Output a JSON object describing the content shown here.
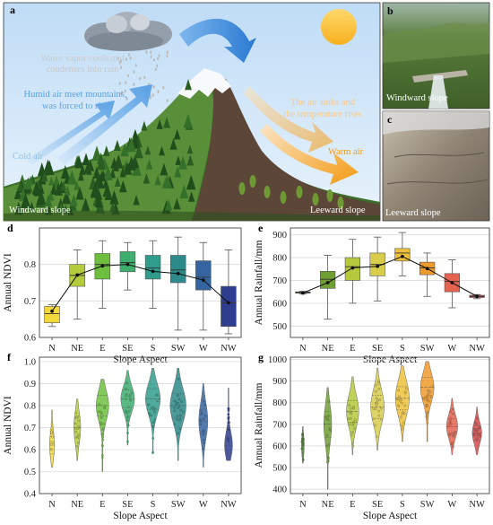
{
  "panels": {
    "a": {
      "letter": "a",
      "labels": {
        "vapor": [
          "Water vapor cools and",
          "condenses into rain"
        ],
        "humid": [
          "Humid air meet mountains,",
          "was forced to rise"
        ],
        "cold": "Cold air",
        "sinks": [
          "The air sinks and",
          "the temperature rises"
        ],
        "warm": "Warm air",
        "windward": "Windward slope",
        "leeward": "Leeward slope"
      },
      "colors": {
        "sky": "#cfe4f7",
        "humid_text": "#5aa3e8",
        "cold_text": "#8fc1ea",
        "vapor_text": "#c9c9c9",
        "sinks_text": "#f8c98a",
        "warm_text": "#f09a1c"
      }
    },
    "b": {
      "letter": "b",
      "caption": "Windward slope"
    },
    "c": {
      "letter": "c",
      "caption": "Leeward slope"
    }
  },
  "chart_data": [
    {
      "panel": "d",
      "type": "box",
      "ylabel": "Annual NDVI",
      "xlabel": "Slope Aspect",
      "categories": [
        "N",
        "NE",
        "E",
        "SE",
        "S",
        "SW",
        "W",
        "NW"
      ],
      "ylim": [
        0.6,
        0.9
      ],
      "yticks": [
        0.6,
        0.7,
        0.8
      ],
      "colors": [
        "#f2d83a",
        "#b4cc3c",
        "#6fbf3f",
        "#3eae6f",
        "#2f9c8c",
        "#2d8a8a",
        "#3465a0",
        "#2e3d8f"
      ],
      "boxes": [
        {
          "whisker_low": 0.63,
          "q1": 0.64,
          "median": 0.665,
          "q3": 0.685,
          "whisker_high": 0.69,
          "mean": 0.672
        },
        {
          "whisker_low": 0.65,
          "q1": 0.74,
          "median": 0.77,
          "q3": 0.8,
          "whisker_high": 0.84,
          "mean": 0.771
        },
        {
          "whisker_low": 0.68,
          "q1": 0.76,
          "median": 0.8,
          "q3": 0.83,
          "whisker_high": 0.865,
          "mean": 0.796
        },
        {
          "whisker_low": 0.73,
          "q1": 0.78,
          "median": 0.805,
          "q3": 0.835,
          "whisker_high": 0.86,
          "mean": 0.8
        },
        {
          "whisker_low": 0.68,
          "q1": 0.76,
          "median": 0.79,
          "q3": 0.825,
          "whisker_high": 0.865,
          "mean": 0.781
        },
        {
          "whisker_low": 0.62,
          "q1": 0.75,
          "median": 0.785,
          "q3": 0.825,
          "whisker_high": 0.875,
          "mean": 0.775
        },
        {
          "whisker_low": 0.62,
          "q1": 0.73,
          "median": 0.765,
          "q3": 0.81,
          "whisker_high": 0.86,
          "mean": 0.757
        },
        {
          "whisker_low": 0.61,
          "q1": 0.63,
          "median": 0.695,
          "q3": 0.74,
          "whisker_high": 0.84,
          "mean": 0.695
        }
      ]
    },
    {
      "panel": "e",
      "type": "box",
      "ylabel": "Annual Rainfall/mm",
      "xlabel": "Slope Aspect",
      "categories": [
        "N",
        "NE",
        "E",
        "SE",
        "S",
        "SW",
        "W",
        "NW"
      ],
      "ylim": [
        450,
        930
      ],
      "yticks": [
        500,
        600,
        700,
        800,
        900
      ],
      "colors": [
        "#4a7d2e",
        "#6f9e32",
        "#b4c93c",
        "#d8cd4a",
        "#edc23a",
        "#ee9a2c",
        "#e5624e",
        "#d44a4a"
      ],
      "boxes": [
        {
          "whisker_low": 640,
          "q1": 645,
          "median": 648,
          "q3": 650,
          "whisker_high": 652,
          "mean": 645
        },
        {
          "whisker_low": 530,
          "q1": 665,
          "median": 705,
          "q3": 740,
          "whisker_high": 810,
          "mean": 690
        },
        {
          "whisker_low": 600,
          "q1": 700,
          "median": 760,
          "q3": 800,
          "whisker_high": 880,
          "mean": 755
        },
        {
          "whisker_low": 610,
          "q1": 720,
          "median": 770,
          "q3": 820,
          "whisker_high": 890,
          "mean": 762
        },
        {
          "whisker_low": 720,
          "q1": 785,
          "median": 820,
          "q3": 840,
          "whisker_high": 910,
          "mean": 805
        },
        {
          "whisker_low": 630,
          "q1": 725,
          "median": 755,
          "q3": 780,
          "whisker_high": 820,
          "mean": 752
        },
        {
          "whisker_low": 580,
          "q1": 650,
          "median": 695,
          "q3": 730,
          "whisker_high": 790,
          "mean": 690
        },
        {
          "whisker_low": 620,
          "q1": 625,
          "median": 630,
          "q3": 635,
          "whisker_high": 638,
          "mean": 630
        }
      ]
    },
    {
      "panel": "f",
      "type": "violin",
      "ylabel": "Annual NDVI",
      "xlabel": "Slope Aspect",
      "categories": [
        "N",
        "NE",
        "E",
        "SE",
        "S",
        "SW",
        "W",
        "NW"
      ],
      "ylim": [
        0.4,
        1.02
      ],
      "yticks": [
        0.4,
        0.5,
        0.6,
        0.7,
        0.8,
        0.9,
        1.0
      ],
      "colors": [
        "#f2d83a",
        "#b4cc3c",
        "#6fbf3f",
        "#3eae6f",
        "#2f9c8c",
        "#2d8a8a",
        "#3465a0",
        "#2e3d8f"
      ],
      "violins": [
        {
          "min": 0.52,
          "max": 0.78,
          "center": 0.62,
          "spread": 0.06,
          "width": 0.22
        },
        {
          "min": 0.55,
          "max": 0.83,
          "center": 0.7,
          "spread": 0.07,
          "width": 0.3
        },
        {
          "min": 0.5,
          "max": 0.92,
          "center": 0.8,
          "spread": 0.07,
          "width": 0.55
        },
        {
          "min": 0.62,
          "max": 0.96,
          "center": 0.83,
          "spread": 0.06,
          "width": 0.6
        },
        {
          "min": 0.58,
          "max": 0.97,
          "center": 0.83,
          "spread": 0.07,
          "width": 0.65
        },
        {
          "min": 0.55,
          "max": 0.97,
          "center": 0.8,
          "spread": 0.08,
          "width": 0.7
        },
        {
          "min": 0.52,
          "max": 0.9,
          "center": 0.73,
          "spread": 0.08,
          "width": 0.4
        },
        {
          "min": 0.55,
          "max": 0.88,
          "center": 0.62,
          "spread": 0.06,
          "width": 0.35
        }
      ]
    },
    {
      "panel": "g",
      "type": "violin",
      "ylabel": "Annual Rainfall/mm",
      "xlabel": "Slope Aspect",
      "categories": [
        "N",
        "NE",
        "E",
        "SE",
        "S",
        "SW",
        "W",
        "NW"
      ],
      "ylim": [
        380,
        1010
      ],
      "yticks": [
        400,
        500,
        600,
        700,
        800,
        900,
        1000
      ],
      "colors": [
        "#4a7d2e",
        "#6f9e32",
        "#b4c93c",
        "#d8cd4a",
        "#edc23a",
        "#ee9a2c",
        "#e5624e",
        "#d44a4a"
      ],
      "violins": [
        {
          "min": 520,
          "max": 690,
          "center": 600,
          "spread": 50,
          "width": 0.06
        },
        {
          "min": 400,
          "max": 870,
          "center": 700,
          "spread": 90,
          "width": 0.35
        },
        {
          "min": 560,
          "max": 920,
          "center": 760,
          "spread": 75,
          "width": 0.55
        },
        {
          "min": 580,
          "max": 960,
          "center": 780,
          "spread": 80,
          "width": 0.6
        },
        {
          "min": 620,
          "max": 970,
          "center": 820,
          "spread": 80,
          "width": 0.62
        },
        {
          "min": 620,
          "max": 990,
          "center": 870,
          "spread": 70,
          "width": 0.6
        },
        {
          "min": 560,
          "max": 820,
          "center": 690,
          "spread": 55,
          "width": 0.5
        },
        {
          "min": 560,
          "max": 780,
          "center": 660,
          "spread": 50,
          "width": 0.42
        }
      ]
    }
  ]
}
